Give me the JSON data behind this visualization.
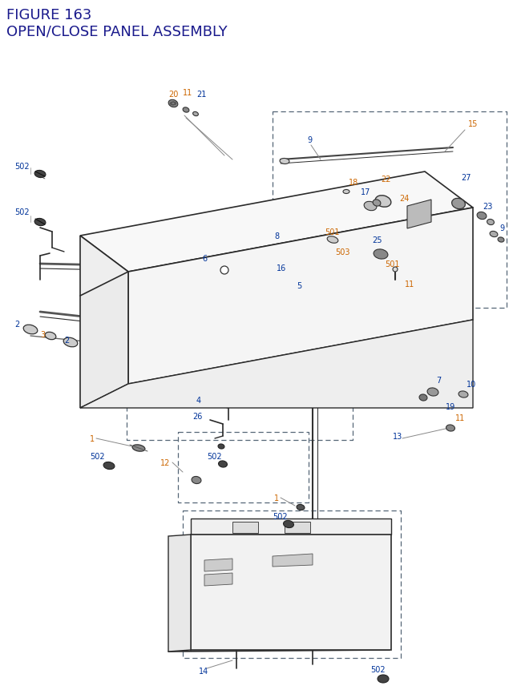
{
  "title_line1": "FIGURE 163",
  "title_line2": "OPEN/CLOSE PANEL ASSEMBLY",
  "title_color": "#1a1a8c",
  "title_fontsize": 13,
  "bg_color": "#ffffff",
  "oc": "#cc6600",
  "bc": "#003399",
  "lc": "#2a2a2a",
  "dc": "#555566"
}
